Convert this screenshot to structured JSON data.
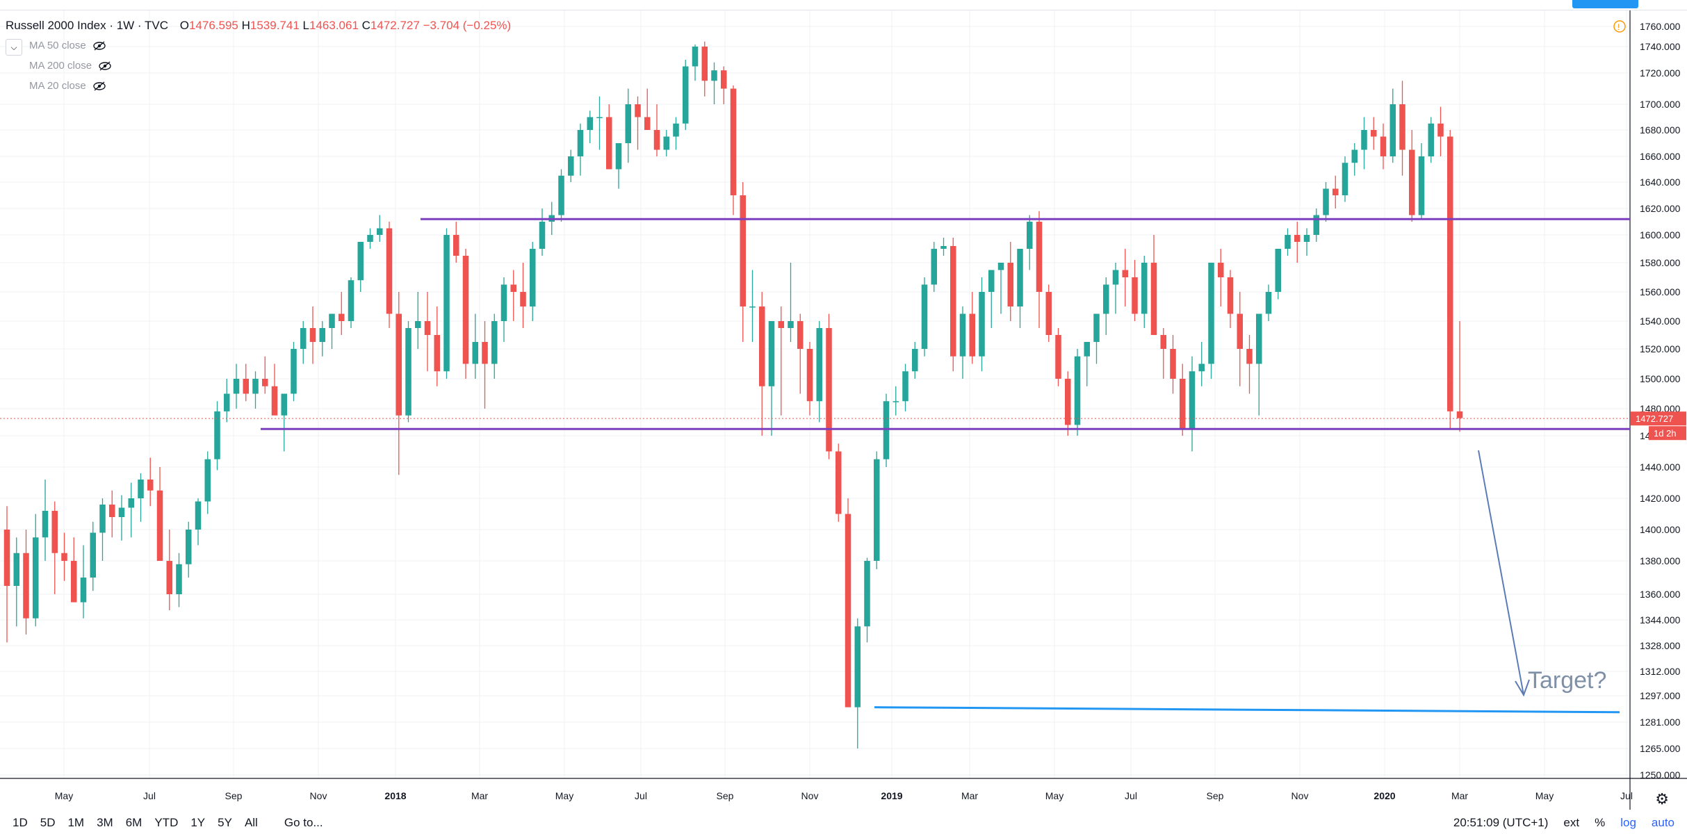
{
  "legend": {
    "symbol": "Russell 2000 Index · 1W · TVC",
    "o_label": "O",
    "o_value": "1476.595",
    "h_label": "H",
    "h_value": "1539.741",
    "l_label": "L",
    "l_value": "1463.061",
    "c_label": "C",
    "c_value": "1472.727",
    "change": "−3.704 (−0.25%)"
  },
  "studies": [
    "MA 50 close",
    "MA 200 close",
    "MA 20 close"
  ],
  "price_axis": {
    "labels": [
      1760,
      1740,
      1720,
      1700,
      1680,
      1660,
      1640,
      1620,
      1600,
      1580,
      1560,
      1540,
      1520,
      1500,
      1480,
      1460,
      1440,
      1420,
      1400,
      1380,
      1360,
      1344,
      1328,
      1312,
      1297,
      1281,
      1265,
      1250
    ],
    "current_price": "1472.727",
    "countdown": "1d 2h"
  },
  "time_axis": [
    "May",
    "Jul",
    "Sep",
    "Nov",
    "2018",
    "Mar",
    "May",
    "Jul",
    "Sep",
    "Nov",
    "2019",
    "Mar",
    "May",
    "Jul",
    "Sep",
    "Nov",
    "2020",
    "Mar",
    "May",
    "Jul"
  ],
  "annotation": {
    "text": "Target?"
  },
  "bottom_bar": {
    "timeframes": [
      "1D",
      "5D",
      "1M",
      "3M",
      "6M",
      "YTD",
      "1Y",
      "5Y",
      "All"
    ],
    "goto": "Go to...",
    "clock": "20:51:09 (UTC+1)",
    "ext": "ext",
    "percent": "%",
    "log": "log",
    "auto": "auto"
  },
  "colors": {
    "up": "#26a69a",
    "down": "#ef5350",
    "level": "#7b3fbf",
    "target_line": "#2196f3",
    "arrow": "#5b7bb5",
    "grid": "#eef0f3"
  },
  "chart_data": {
    "type": "candlestick",
    "title": "Russell 2000 Index · 1W · TVC",
    "ylim": [
      1250,
      1765
    ],
    "weeks": [
      [
        1400,
        1415,
        1330,
        1365
      ],
      [
        1365,
        1395,
        1340,
        1385
      ],
      [
        1385,
        1400,
        1335,
        1345
      ],
      [
        1345,
        1410,
        1340,
        1395
      ],
      [
        1395,
        1432,
        1380,
        1412
      ],
      [
        1412,
        1418,
        1360,
        1385
      ],
      [
        1385,
        1398,
        1368,
        1380
      ],
      [
        1380,
        1395,
        1370,
        1355
      ],
      [
        1355,
        1390,
        1345,
        1370
      ],
      [
        1370,
        1405,
        1362,
        1398
      ],
      [
        1398,
        1420,
        1380,
        1416
      ],
      [
        1416,
        1425,
        1395,
        1408
      ],
      [
        1408,
        1422,
        1393,
        1414
      ],
      [
        1414,
        1430,
        1395,
        1420
      ],
      [
        1420,
        1436,
        1405,
        1432
      ],
      [
        1432,
        1446,
        1415,
        1425
      ],
      [
        1425,
        1440,
        1392,
        1380
      ],
      [
        1380,
        1400,
        1350,
        1360
      ],
      [
        1360,
        1385,
        1352,
        1378
      ],
      [
        1378,
        1405,
        1370,
        1400
      ],
      [
        1400,
        1420,
        1390,
        1418
      ],
      [
        1418,
        1450,
        1410,
        1445
      ],
      [
        1445,
        1485,
        1438,
        1478
      ],
      [
        1478,
        1500,
        1470,
        1490
      ],
      [
        1490,
        1510,
        1480,
        1500
      ],
      [
        1500,
        1510,
        1485,
        1490
      ],
      [
        1490,
        1505,
        1480,
        1500
      ],
      [
        1500,
        1515,
        1490,
        1495
      ],
      [
        1495,
        1510,
        1478,
        1475
      ],
      [
        1475,
        1490,
        1450,
        1490
      ],
      [
        1490,
        1525,
        1485,
        1520
      ],
      [
        1520,
        1540,
        1510,
        1535
      ],
      [
        1535,
        1550,
        1510,
        1525
      ],
      [
        1525,
        1540,
        1515,
        1535
      ],
      [
        1535,
        1545,
        1520,
        1545
      ],
      [
        1545,
        1560,
        1530,
        1540
      ],
      [
        1540,
        1570,
        1535,
        1568
      ],
      [
        1568,
        1590,
        1560,
        1595
      ],
      [
        1595,
        1605,
        1590,
        1600
      ],
      [
        1600,
        1615,
        1595,
        1605
      ],
      [
        1605,
        1610,
        1535,
        1545
      ],
      [
        1545,
        1560,
        1435,
        1475
      ],
      [
        1475,
        1540,
        1470,
        1535
      ],
      [
        1535,
        1560,
        1520,
        1540
      ],
      [
        1540,
        1560,
        1505,
        1530
      ],
      [
        1530,
        1550,
        1495,
        1505
      ],
      [
        1505,
        1605,
        1500,
        1600
      ],
      [
        1600,
        1610,
        1580,
        1585
      ],
      [
        1585,
        1590,
        1500,
        1510
      ],
      [
        1510,
        1545,
        1500,
        1525
      ],
      [
        1525,
        1540,
        1480,
        1510
      ],
      [
        1510,
        1545,
        1500,
        1540
      ],
      [
        1540,
        1570,
        1525,
        1565
      ],
      [
        1565,
        1575,
        1540,
        1560
      ],
      [
        1560,
        1580,
        1535,
        1550
      ],
      [
        1550,
        1595,
        1540,
        1590
      ],
      [
        1590,
        1620,
        1585,
        1610
      ],
      [
        1610,
        1625,
        1600,
        1615
      ],
      [
        1615,
        1650,
        1610,
        1645
      ],
      [
        1645,
        1665,
        1640,
        1660
      ],
      [
        1660,
        1685,
        1645,
        1680
      ],
      [
        1680,
        1695,
        1670,
        1690
      ],
      [
        1690,
        1705,
        1665,
        1690
      ],
      [
        1690,
        1700,
        1650,
        1650
      ],
      [
        1650,
        1660,
        1635,
        1670
      ],
      [
        1670,
        1710,
        1655,
        1700
      ],
      [
        1700,
        1705,
        1665,
        1690
      ],
      [
        1690,
        1710,
        1680,
        1680
      ],
      [
        1680,
        1700,
        1660,
        1665
      ],
      [
        1665,
        1680,
        1660,
        1675
      ],
      [
        1675,
        1690,
        1665,
        1685
      ],
      [
        1685,
        1730,
        1680,
        1725
      ],
      [
        1725,
        1742,
        1715,
        1740
      ],
      [
        1740,
        1745,
        1705,
        1715
      ],
      [
        1715,
        1728,
        1700,
        1722
      ],
      [
        1722,
        1725,
        1700,
        1710
      ],
      [
        1710,
        1712,
        1615,
        1630
      ],
      [
        1630,
        1640,
        1525,
        1550
      ],
      [
        1550,
        1575,
        1525,
        1550
      ],
      [
        1550,
        1560,
        1460,
        1495
      ],
      [
        1495,
        1535,
        1460,
        1540
      ],
      [
        1540,
        1550,
        1475,
        1535
      ],
      [
        1535,
        1580,
        1525,
        1540
      ],
      [
        1540,
        1545,
        1490,
        1520
      ],
      [
        1520,
        1525,
        1475,
        1485
      ],
      [
        1485,
        1540,
        1470,
        1535
      ],
      [
        1535,
        1545,
        1445,
        1450
      ],
      [
        1450,
        1455,
        1405,
        1410
      ],
      [
        1410,
        1420,
        1335,
        1290
      ],
      [
        1290,
        1345,
        1265,
        1340
      ],
      [
        1340,
        1382,
        1330,
        1380
      ],
      [
        1380,
        1450,
        1375,
        1445
      ],
      [
        1445,
        1490,
        1440,
        1485
      ],
      [
        1485,
        1495,
        1475,
        1485
      ],
      [
        1485,
        1510,
        1478,
        1505
      ],
      [
        1505,
        1525,
        1500,
        1520
      ],
      [
        1520,
        1570,
        1515,
        1565
      ],
      [
        1565,
        1595,
        1560,
        1590
      ],
      [
        1590,
        1598,
        1585,
        1592
      ],
      [
        1592,
        1598,
        1505,
        1515
      ],
      [
        1515,
        1550,
        1500,
        1545
      ],
      [
        1545,
        1560,
        1510,
        1515
      ],
      [
        1515,
        1570,
        1505,
        1560
      ],
      [
        1560,
        1575,
        1535,
        1575
      ],
      [
        1575,
        1580,
        1545,
        1580
      ],
      [
        1580,
        1595,
        1540,
        1550
      ],
      [
        1550,
        1585,
        1535,
        1590
      ],
      [
        1590,
        1615,
        1575,
        1610
      ],
      [
        1610,
        1618,
        1535,
        1560
      ],
      [
        1560,
        1565,
        1525,
        1530
      ],
      [
        1530,
        1535,
        1495,
        1500
      ],
      [
        1500,
        1505,
        1460,
        1468
      ],
      [
        1468,
        1520,
        1460,
        1515
      ],
      [
        1515,
        1525,
        1495,
        1525
      ],
      [
        1525,
        1545,
        1510,
        1545
      ],
      [
        1545,
        1570,
        1530,
        1565
      ],
      [
        1565,
        1580,
        1545,
        1575
      ],
      [
        1575,
        1590,
        1550,
        1570
      ],
      [
        1570,
        1582,
        1540,
        1545
      ],
      [
        1545,
        1585,
        1535,
        1580
      ],
      [
        1580,
        1600,
        1540,
        1530
      ],
      [
        1530,
        1535,
        1500,
        1520
      ],
      [
        1520,
        1530,
        1490,
        1500
      ],
      [
        1500,
        1510,
        1460,
        1465
      ],
      [
        1465,
        1515,
        1450,
        1505
      ],
      [
        1505,
        1525,
        1495,
        1510
      ],
      [
        1510,
        1560,
        1500,
        1580
      ],
      [
        1580,
        1590,
        1550,
        1570
      ],
      [
        1570,
        1575,
        1535,
        1545
      ],
      [
        1545,
        1560,
        1495,
        1520
      ],
      [
        1520,
        1530,
        1490,
        1510
      ],
      [
        1510,
        1540,
        1475,
        1545
      ],
      [
        1545,
        1565,
        1540,
        1560
      ],
      [
        1560,
        1590,
        1555,
        1590
      ],
      [
        1590,
        1605,
        1585,
        1600
      ],
      [
        1600,
        1610,
        1580,
        1595
      ],
      [
        1595,
        1605,
        1585,
        1600
      ],
      [
        1600,
        1620,
        1595,
        1615
      ],
      [
        1615,
        1640,
        1610,
        1635
      ],
      [
        1635,
        1645,
        1620,
        1630
      ],
      [
        1630,
        1660,
        1625,
        1655
      ],
      [
        1655,
        1670,
        1645,
        1665
      ],
      [
        1665,
        1690,
        1650,
        1680
      ],
      [
        1680,
        1690,
        1665,
        1675
      ],
      [
        1675,
        1685,
        1650,
        1660
      ],
      [
        1660,
        1710,
        1655,
        1700
      ],
      [
        1700,
        1715,
        1645,
        1665
      ],
      [
        1665,
        1680,
        1610,
        1615
      ],
      [
        1615,
        1670,
        1612,
        1660
      ],
      [
        1660,
        1690,
        1655,
        1685
      ],
      [
        1685,
        1698,
        1660,
        1675
      ],
      [
        1675,
        1680,
        1465,
        1478
      ],
      [
        1478,
        1540,
        1463,
        1473
      ]
    ],
    "levels": [
      1612,
      1465
    ],
    "target_level": 1290
  }
}
